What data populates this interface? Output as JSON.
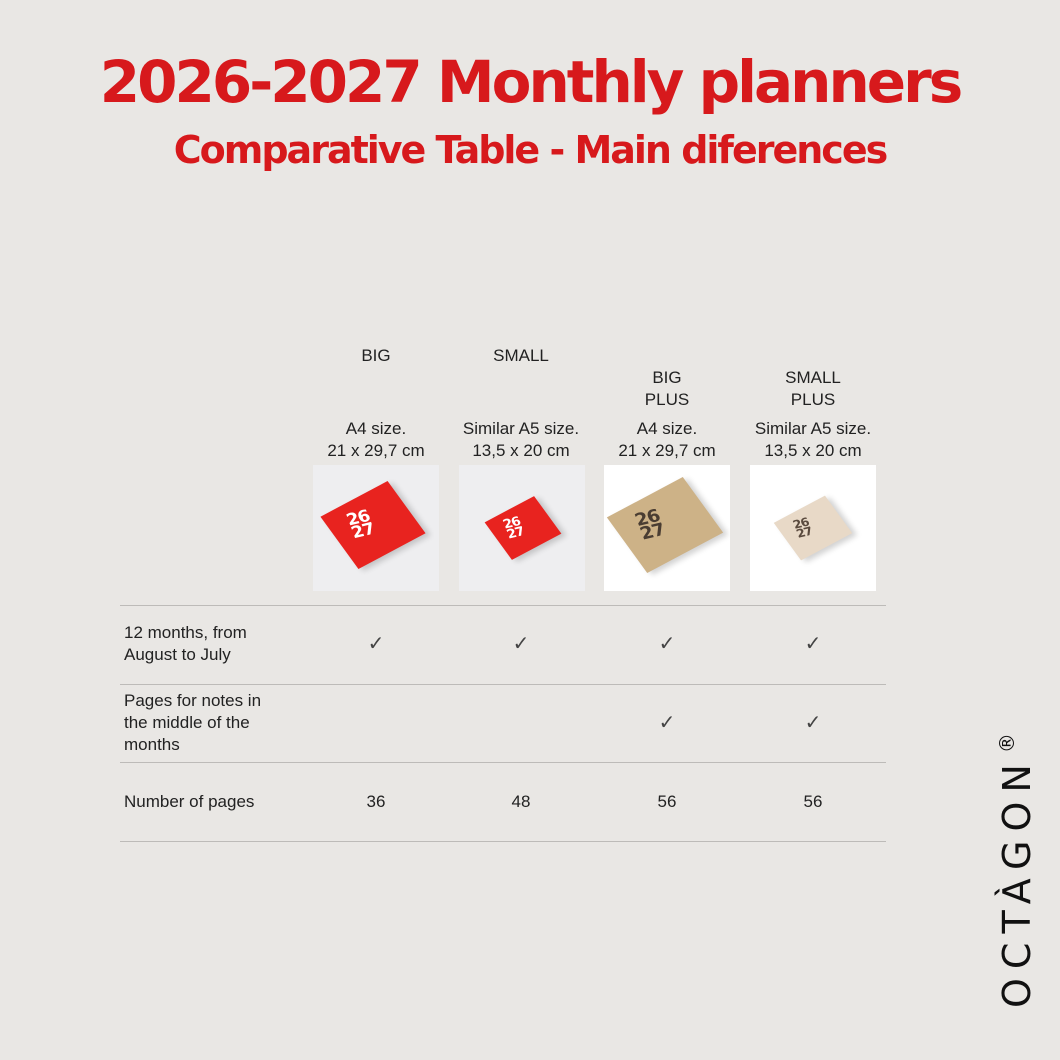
{
  "header": {
    "title": "2026-2027 Monthly planners",
    "subtitle": "Comparative Table - Main diferences"
  },
  "columns": [
    {
      "name": "BIG",
      "size_line1": "A4 size.",
      "size_line2": "21 x 29,7 cm",
      "cover_text_1": "26",
      "cover_text_2": "27",
      "cover_color": "#e8231f",
      "cover_text_color": "#ffffff"
    },
    {
      "name": "SMALL",
      "size_line1": "Similar A5 size.",
      "size_line2": "13,5 x 20 cm",
      "cover_text_1": "26",
      "cover_text_2": "27",
      "cover_color": "#e8231f",
      "cover_text_color": "#ffffff"
    },
    {
      "name": "BIG\nPLUS",
      "size_line1": "A4 size.",
      "size_line2": "21 x 29,7 cm",
      "cover_text_1": "26",
      "cover_text_2": "27",
      "cover_color": "#cdb287",
      "cover_text_color": "#4a3d32"
    },
    {
      "name": "SMALL\nPLUS",
      "size_line1": "Similar A5 size.",
      "size_line2": "13,5 x 20 cm",
      "cover_text_1": "26",
      "cover_text_2": "27",
      "cover_color": "#e8d9c7",
      "cover_text_color": "#5a4a3e"
    }
  ],
  "rows": [
    {
      "label": "12 months, from August to July",
      "values": [
        "✓",
        "✓",
        "✓",
        "✓"
      ]
    },
    {
      "label": "Pages for notes in the middle of the months",
      "values": [
        "",
        "",
        "✓",
        "✓"
      ]
    },
    {
      "label": "Number of pages",
      "values": [
        "36",
        "48",
        "56",
        "56"
      ]
    }
  ],
  "brand": {
    "name": "OCTÀGON",
    "mark": "®"
  },
  "colors": {
    "accent": "#d7191c",
    "background": "#e9e7e4"
  }
}
